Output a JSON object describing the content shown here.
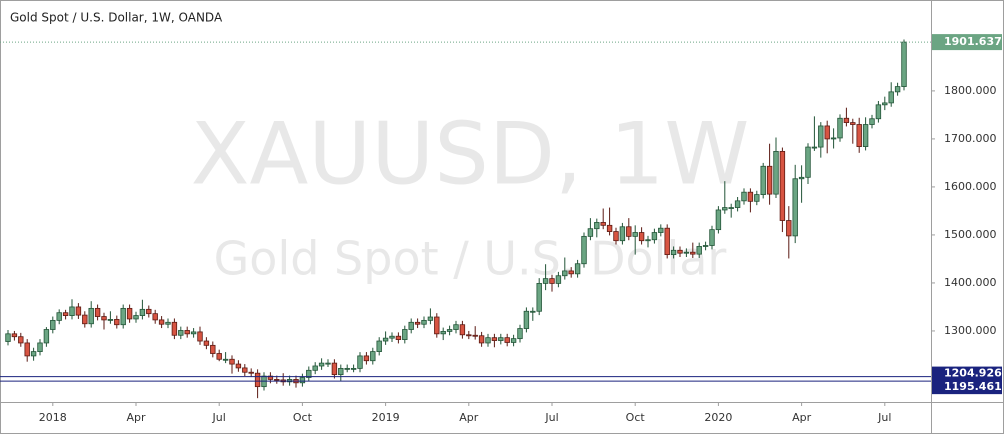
{
  "chart_data": {
    "type": "candlestick",
    "title": "Gold Spot / U.S. Dollar, 1W, OANDA",
    "watermark_symbol": "XAUUSD, 1W",
    "watermark_name": "Gold Spot / U.S. Dollar",
    "categories": [
      null,
      null,
      null,
      null,
      null,
      null,
      null,
      "2018",
      null,
      null,
      null,
      null,
      null,
      null,
      null,
      null,
      null,
      null,
      null,
      null,
      "Apr",
      null,
      null,
      null,
      null,
      null,
      null,
      null,
      null,
      null,
      null,
      null,
      null,
      "Jul",
      null,
      null,
      null,
      null,
      null,
      null,
      null,
      null,
      null,
      null,
      null,
      null,
      "Oct",
      null,
      null,
      null,
      null,
      null,
      null,
      null,
      null,
      null,
      null,
      null,
      null,
      "2019",
      null,
      null,
      null,
      null,
      null,
      null,
      null,
      null,
      null,
      null,
      null,
      null,
      "Apr",
      null,
      null,
      null,
      null,
      null,
      null,
      null,
      null,
      null,
      null,
      null,
      null,
      "Jul",
      null,
      null,
      null,
      null,
      null,
      null,
      null,
      null,
      null,
      null,
      null,
      null,
      "Oct",
      null,
      null,
      null,
      null,
      null,
      null,
      null,
      null,
      null,
      null,
      null,
      null,
      "2020",
      null,
      null,
      null,
      null,
      null,
      null,
      null,
      null,
      null,
      null,
      null,
      null,
      "Apr",
      null,
      null,
      null,
      null,
      null,
      null,
      null,
      null,
      null,
      null,
      null,
      null,
      "Jul",
      null,
      null,
      null
    ],
    "open": [
      1278,
      1294,
      1288,
      1275,
      1248,
      1257,
      1275,
      1303,
      1322,
      1338,
      1332,
      1350,
      1333,
      1315,
      1347,
      1330,
      1323,
      1324,
      1313,
      1347,
      1325,
      1332,
      1345,
      1336,
      1323,
      1314,
      1318,
      1291,
      1301,
      1294,
      1298,
      1279,
      1270,
      1253,
      1241,
      1241,
      1231,
      1223,
      1214,
      1212,
      1184,
      1206,
      1199,
      1198,
      1194,
      1199,
      1192,
      1203,
      1218,
      1227,
      1233,
      1233,
      1209,
      1222,
      1222,
      1222,
      1248,
      1238,
      1257,
      1279,
      1285,
      1289,
      1282,
      1303,
      1318,
      1314,
      1322,
      1329,
      1294,
      1299,
      1303,
      1313,
      1292,
      1291,
      1290,
      1275,
      1286,
      1280,
      1286,
      1276,
      1284,
      1305,
      1341,
      1341,
      1399,
      1409,
      1399,
      1415,
      1425,
      1419,
      1440,
      1497,
      1513,
      1526,
      1520,
      1507,
      1488,
      1517,
      1497,
      1505,
      1488,
      1490,
      1505,
      1514,
      1459,
      1468,
      1462,
      1464,
      1460,
      1476,
      1478,
      1511,
      1552,
      1557,
      1557,
      1571,
      1589,
      1570,
      1584,
      1643,
      1585,
      1674,
      1530,
      1498,
      1617,
      1620,
      1683,
      1683,
      1727,
      1700,
      1702,
      1743,
      1734,
      1730,
      1684,
      1730,
      1742,
      1771,
      1775,
      1798,
      1809
    ],
    "high": [
      1302,
      1300,
      1296,
      1283,
      1265,
      1283,
      1308,
      1330,
      1345,
      1344,
      1366,
      1358,
      1341,
      1362,
      1355,
      1338,
      1341,
      1332,
      1355,
      1355,
      1340,
      1365,
      1353,
      1344,
      1331,
      1326,
      1326,
      1309,
      1309,
      1306,
      1309,
      1287,
      1278,
      1261,
      1256,
      1249,
      1239,
      1231,
      1222,
      1220,
      1214,
      1214,
      1207,
      1212,
      1207,
      1207,
      1211,
      1226,
      1235,
      1243,
      1241,
      1241,
      1230,
      1230,
      1230,
      1256,
      1256,
      1265,
      1287,
      1299,
      1297,
      1297,
      1311,
      1326,
      1326,
      1330,
      1347,
      1337,
      1307,
      1311,
      1321,
      1321,
      1300,
      1310,
      1298,
      1294,
      1294,
      1294,
      1294,
      1292,
      1313,
      1349,
      1349,
      1410,
      1439,
      1417,
      1423,
      1453,
      1433,
      1448,
      1505,
      1535,
      1534,
      1555,
      1557,
      1515,
      1525,
      1535,
      1520,
      1516,
      1498,
      1513,
      1522,
      1522,
      1476,
      1476,
      1472,
      1484,
      1484,
      1486,
      1519,
      1560,
      1612,
      1565,
      1579,
      1597,
      1597,
      1592,
      1650,
      1690,
      1703,
      1682,
      1560,
      1646,
      1645,
      1691,
      1747,
      1735,
      1738,
      1722,
      1751,
      1765,
      1742,
      1744,
      1745,
      1750,
      1779,
      1788,
      1818,
      1817,
      1907
    ],
    "low": [
      1270,
      1280,
      1267,
      1236,
      1238,
      1249,
      1267,
      1295,
      1314,
      1324,
      1324,
      1325,
      1307,
      1307,
      1322,
      1303,
      1315,
      1305,
      1305,
      1317,
      1317,
      1324,
      1328,
      1315,
      1306,
      1306,
      1283,
      1283,
      1286,
      1286,
      1271,
      1262,
      1245,
      1237,
      1233,
      1211,
      1215,
      1206,
      1204,
      1160,
      1176,
      1191,
      1190,
      1186,
      1186,
      1182,
      1184,
      1195,
      1210,
      1219,
      1225,
      1201,
      1196,
      1214,
      1214,
      1214,
      1230,
      1230,
      1249,
      1271,
      1277,
      1274,
      1274,
      1295,
      1306,
      1306,
      1314,
      1286,
      1281,
      1291,
      1295,
      1284,
      1283,
      1282,
      1267,
      1267,
      1266,
      1272,
      1268,
      1268,
      1276,
      1297,
      1321,
      1333,
      1385,
      1382,
      1391,
      1407,
      1411,
      1411,
      1432,
      1489,
      1495,
      1512,
      1499,
      1480,
      1480,
      1489,
      1459,
      1480,
      1474,
      1482,
      1497,
      1451,
      1451,
      1454,
      1454,
      1452,
      1452,
      1468,
      1470,
      1503,
      1544,
      1536,
      1549,
      1563,
      1547,
      1562,
      1576,
      1563,
      1577,
      1506,
      1451,
      1483,
      1567,
      1606,
      1675,
      1661,
      1670,
      1680,
      1694,
      1726,
      1690,
      1671,
      1676,
      1722,
      1734,
      1760,
      1767,
      1790,
      1801
    ],
    "close": [
      1294,
      1288,
      1275,
      1248,
      1257,
      1275,
      1303,
      1322,
      1338,
      1332,
      1350,
      1333,
      1315,
      1347,
      1330,
      1323,
      1324,
      1313,
      1347,
      1325,
      1332,
      1345,
      1336,
      1323,
      1314,
      1318,
      1291,
      1301,
      1294,
      1298,
      1279,
      1270,
      1253,
      1241,
      1241,
      1231,
      1223,
      1214,
      1212,
      1184,
      1206,
      1199,
      1198,
      1194,
      1199,
      1192,
      1203,
      1218,
      1227,
      1233,
      1233,
      1209,
      1222,
      1222,
      1222,
      1248,
      1238,
      1257,
      1279,
      1285,
      1289,
      1282,
      1303,
      1318,
      1314,
      1322,
      1329,
      1294,
      1299,
      1303,
      1313,
      1292,
      1291,
      1290,
      1275,
      1286,
      1280,
      1286,
      1276,
      1284,
      1305,
      1341,
      1341,
      1399,
      1409,
      1399,
      1415,
      1425,
      1419,
      1440,
      1497,
      1513,
      1526,
      1520,
      1507,
      1488,
      1517,
      1497,
      1505,
      1488,
      1490,
      1505,
      1514,
      1459,
      1468,
      1462,
      1464,
      1460,
      1476,
      1478,
      1511,
      1552,
      1557,
      1557,
      1571,
      1589,
      1570,
      1584,
      1643,
      1585,
      1674,
      1530,
      1498,
      1617,
      1620,
      1683,
      1683,
      1727,
      1700,
      1702,
      1743,
      1734,
      1730,
      1684,
      1730,
      1742,
      1771,
      1775,
      1798,
      1809,
      1901.637
    ],
    "up_color": "#6ba583",
    "down_color": "#d75442",
    "hlines": [
      1204.926,
      1195.461
    ],
    "hline_color": "#1a237e",
    "ylim": [
      1152,
      1981
    ],
    "yticks": [
      {
        "value": 1300,
        "label": "1300.000"
      },
      {
        "value": 1400,
        "label": "1400.000"
      },
      {
        "value": 1500,
        "label": "1500.000"
      },
      {
        "value": 1600,
        "label": "1600.000"
      },
      {
        "value": 1700,
        "label": "1700.000"
      },
      {
        "value": 1800,
        "label": "1800.000"
      }
    ],
    "grid": false
  }
}
